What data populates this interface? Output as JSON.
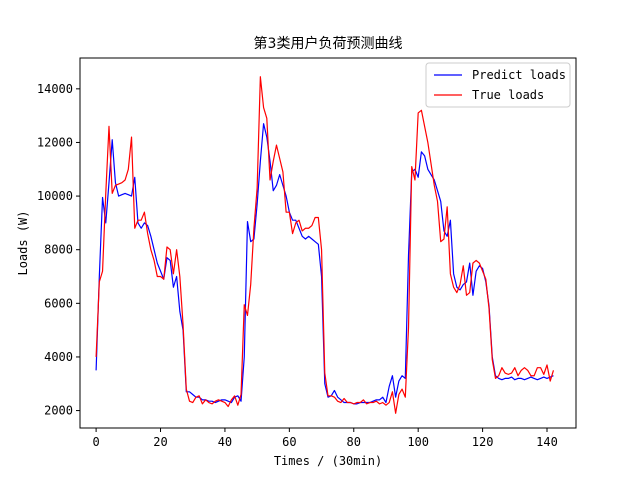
{
  "chart_data": {
    "type": "line",
    "title": "第3类用户负荷预测曲线",
    "xlabel": "Times / (30min)",
    "ylabel": "Loads (W)",
    "xlim": [
      -5,
      149
    ],
    "ylim": [
      1350,
      15150
    ],
    "xticks": [
      0,
      20,
      40,
      60,
      80,
      100,
      120,
      140
    ],
    "yticks": [
      2000,
      4000,
      6000,
      8000,
      10000,
      12000,
      14000
    ],
    "grid": false,
    "legend_position": "top-right",
    "series": [
      {
        "name": "Predict loads",
        "color": "#0000ff",
        "x": [
          0,
          1,
          2,
          3,
          4,
          5,
          6,
          7,
          8,
          9,
          10,
          11,
          12,
          13,
          14,
          15,
          16,
          17,
          18,
          19,
          20,
          21,
          22,
          23,
          24,
          25,
          26,
          27,
          28,
          29,
          30,
          31,
          32,
          33,
          34,
          35,
          36,
          37,
          38,
          39,
          40,
          41,
          42,
          43,
          44,
          45,
          46,
          47,
          48,
          49,
          50,
          51,
          52,
          53,
          54,
          55,
          56,
          57,
          58,
          59,
          60,
          61,
          62,
          63,
          64,
          65,
          66,
          67,
          68,
          69,
          70,
          71,
          72,
          73,
          74,
          75,
          76,
          77,
          78,
          79,
          80,
          81,
          82,
          83,
          84,
          85,
          86,
          87,
          88,
          89,
          90,
          91,
          92,
          93,
          94,
          95,
          96,
          97,
          98,
          99,
          100,
          101,
          102,
          103,
          104,
          105,
          106,
          107,
          108,
          109,
          110,
          111,
          112,
          113,
          114,
          115,
          116,
          117,
          118,
          119,
          120,
          121,
          122,
          123,
          124,
          125,
          126,
          127,
          128,
          129,
          130,
          131,
          132,
          133,
          134,
          135,
          136,
          137,
          138,
          139,
          140,
          141,
          142
        ],
        "values": [
          3500,
          7000,
          9950,
          9000,
          10500,
          12100,
          10500,
          10000,
          10050,
          10100,
          10050,
          10000,
          10700,
          9000,
          8800,
          9000,
          8900,
          8500,
          8000,
          7500,
          7200,
          6900,
          7700,
          7600,
          6600,
          7000,
          5700,
          5000,
          2700,
          2700,
          2600,
          2500,
          2500,
          2400,
          2400,
          2350,
          2350,
          2300,
          2350,
          2400,
          2400,
          2350,
          2300,
          2500,
          2550,
          2350,
          4000,
          9050,
          8300,
          8400,
          9700,
          11300,
          12700,
          12200,
          11300,
          10200,
          10400,
          10800,
          10400,
          10000,
          9400,
          9100,
          9100,
          8800,
          8500,
          8400,
          8500,
          8400,
          8300,
          8200,
          7000,
          3000,
          2500,
          2550,
          2750,
          2500,
          2400,
          2300,
          2300,
          2300,
          2250,
          2250,
          2300,
          2300,
          2300,
          2300,
          2350,
          2400,
          2400,
          2500,
          2300,
          2900,
          3300,
          2500,
          3100,
          3300,
          3200,
          7800,
          10900,
          11000,
          10700,
          11650,
          11500,
          11000,
          10800,
          10600,
          10200,
          9800,
          8700,
          8500,
          9100,
          7100,
          6600,
          6500,
          6700,
          6800,
          7500,
          6300,
          7200,
          7400,
          7300,
          6800,
          5900,
          4000,
          3300,
          3200,
          3150,
          3200,
          3200,
          3250,
          3150,
          3200,
          3200,
          3150,
          3200,
          3250,
          3200,
          3150,
          3200,
          3250,
          3200,
          3250,
          3300
        ]
      },
      {
        "name": "True loads",
        "color": "#ff0000",
        "x": [
          0,
          1,
          2,
          3,
          4,
          5,
          6,
          7,
          8,
          9,
          10,
          11,
          12,
          13,
          14,
          15,
          16,
          17,
          18,
          19,
          20,
          21,
          22,
          23,
          24,
          25,
          26,
          27,
          28,
          29,
          30,
          31,
          32,
          33,
          34,
          35,
          36,
          37,
          38,
          39,
          40,
          41,
          42,
          43,
          44,
          45,
          46,
          47,
          48,
          49,
          50,
          51,
          52,
          53,
          54,
          55,
          56,
          57,
          58,
          59,
          60,
          61,
          62,
          63,
          64,
          65,
          66,
          67,
          68,
          69,
          70,
          71,
          72,
          73,
          74,
          75,
          76,
          77,
          78,
          79,
          80,
          81,
          82,
          83,
          84,
          85,
          86,
          87,
          88,
          89,
          90,
          91,
          92,
          93,
          94,
          95,
          96,
          97,
          98,
          99,
          100,
          101,
          102,
          103,
          104,
          105,
          106,
          107,
          108,
          109,
          110,
          111,
          112,
          113,
          114,
          115,
          116,
          117,
          118,
          119,
          120,
          121,
          122,
          123,
          124,
          125,
          126,
          127,
          128,
          129,
          130,
          131,
          132,
          133,
          134,
          135,
          136,
          137,
          138,
          139,
          140,
          141,
          142
        ],
        "values": [
          4000,
          6800,
          7200,
          10100,
          12600,
          10100,
          10400,
          10450,
          10500,
          10600,
          11000,
          12200,
          8800,
          9100,
          9100,
          9400,
          8600,
          8000,
          7600,
          7000,
          7000,
          6900,
          8100,
          8000,
          7100,
          8000,
          7000,
          5200,
          2800,
          2350,
          2300,
          2500,
          2550,
          2250,
          2400,
          2300,
          2250,
          2350,
          2400,
          2350,
          2300,
          2150,
          2400,
          2550,
          2200,
          2600,
          5950,
          5550,
          6700,
          8800,
          10300,
          14450,
          13300,
          12900,
          10600,
          11300,
          11900,
          11400,
          10900,
          9400,
          9400,
          8600,
          9000,
          9100,
          8700,
          8800,
          8800,
          8900,
          9200,
          9200,
          8000,
          3400,
          2550,
          2550,
          2500,
          2350,
          2300,
          2450,
          2300,
          2300,
          2250,
          2300,
          2300,
          2400,
          2250,
          2300,
          2300,
          2350,
          2250,
          2300,
          2200,
          2300,
          2700,
          1900,
          2600,
          2800,
          2500,
          5100,
          11100,
          10600,
          13100,
          13200,
          12600,
          12000,
          11200,
          10400,
          9800,
          8300,
          8400,
          9600,
          7100,
          6600,
          6400,
          6700,
          7400,
          6300,
          6400,
          7500,
          7600,
          7500,
          7200,
          6900,
          5800,
          3900,
          3200,
          3300,
          3600,
          3400,
          3350,
          3400,
          3600,
          3300,
          3500,
          3600,
          3500,
          3300,
          3300,
          3600,
          3600,
          3350,
          3700,
          3100,
          3500
        ]
      }
    ]
  }
}
